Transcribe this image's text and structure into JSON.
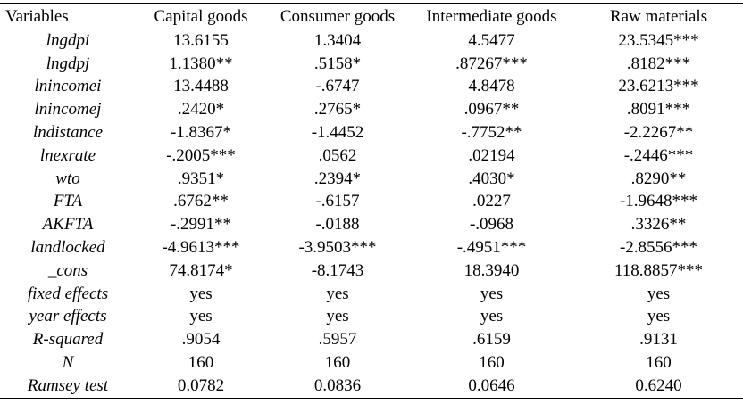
{
  "table": {
    "headers": [
      "Variables",
      "Capital goods",
      "Consumer goods",
      "Intermediate goods",
      "Raw materials"
    ],
    "rows": [
      {
        "variable": "lngdpi",
        "values": [
          "13.6155",
          "1.3404",
          "4.5477",
          "23.5345***"
        ]
      },
      {
        "variable": "lngdpj",
        "values": [
          "1.1380**",
          ".5158*",
          ".87267***",
          ".8182***"
        ]
      },
      {
        "variable": "lnincomei",
        "values": [
          "13.4488",
          "-.6747",
          "4.8478",
          "23.6213***"
        ]
      },
      {
        "variable": "lnincomej",
        "values": [
          ".2420*",
          ".2765*",
          ".0967**",
          ".8091***"
        ]
      },
      {
        "variable": "lndistance",
        "values": [
          "-1.8367*",
          "-1.4452",
          "-.7752**",
          "-2.2267**"
        ]
      },
      {
        "variable": "lnexrate",
        "values": [
          "-.2005***",
          ".0562",
          ".02194",
          "-.2446***"
        ]
      },
      {
        "variable": "wto",
        "values": [
          ".9351*",
          ".2394*",
          ".4030*",
          ".8290**"
        ]
      },
      {
        "variable": "FTA",
        "values": [
          ".6762**",
          "-.6157",
          ".0227",
          "-1.9648***"
        ]
      },
      {
        "variable": "AKFTA",
        "values": [
          "-.2991**",
          "-.0188",
          "-.0968",
          ".3326**"
        ]
      },
      {
        "variable": "landlocked",
        "values": [
          "-4.9613***",
          "-3.9503***",
          "-.4951***",
          "-2.8556***"
        ]
      },
      {
        "variable": "_cons",
        "values": [
          "74.8174*",
          "-8.1743",
          "18.3940",
          "118.8857***"
        ]
      },
      {
        "variable": "fixed effects",
        "values": [
          "yes",
          "yes",
          "yes",
          "yes"
        ]
      },
      {
        "variable": "year effects",
        "values": [
          "yes",
          "yes",
          "yes",
          "yes"
        ]
      },
      {
        "variable": "R-squared",
        "values": [
          ".9054",
          ".5957",
          ".6159",
          ".9131"
        ]
      },
      {
        "variable": "N",
        "values": [
          "160",
          "160",
          "160",
          "160"
        ]
      },
      {
        "variable": "Ramsey test",
        "values": [
          "0.0782",
          "0.0836",
          "0.0646",
          "0.6240"
        ]
      }
    ]
  }
}
